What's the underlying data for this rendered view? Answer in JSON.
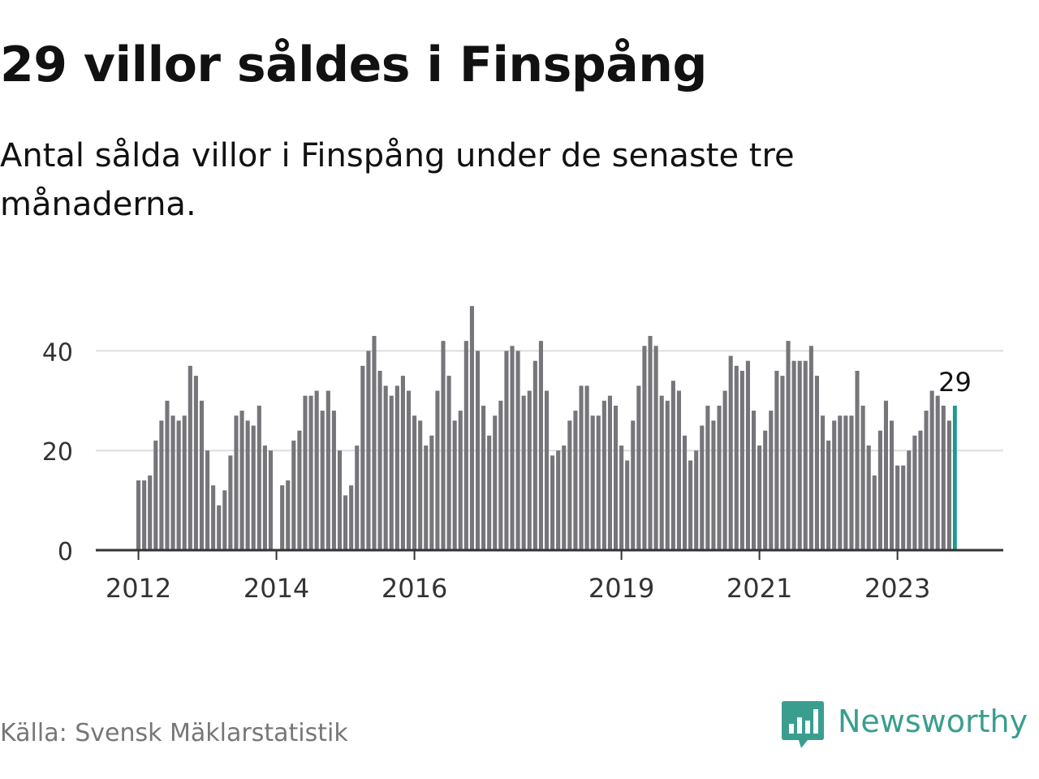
{
  "title": "29 villor såldes i Finspång",
  "subtitle": "Antal sålda villor i Finspång under de senaste tre månaderna.",
  "source": "Källa: Svensk Mäklarstatistik",
  "brand": {
    "name": "Newsworthy",
    "logo_icon": "bar-chart-speech-bubble-icon"
  },
  "colors": {
    "bar": "#76757a",
    "highlight": "#1b9a8e",
    "grid": "#dddddd",
    "axis": "#333333",
    "brand": "#3a9e8f"
  },
  "chart_data": {
    "type": "bar",
    "ylim": [
      0,
      50
    ],
    "yticks": [
      0,
      20,
      40
    ],
    "xticks": [
      "2012",
      "2014",
      "2016",
      "2019",
      "2021",
      "2023"
    ],
    "highlight_label": "29",
    "series": [
      {
        "values": [
          14,
          14,
          15,
          22,
          26,
          30,
          27,
          26,
          27,
          37,
          35,
          30,
          20,
          13,
          9,
          12,
          19,
          27,
          28,
          26,
          25,
          29,
          21,
          20,
          null,
          13,
          14,
          22,
          24,
          31,
          31,
          32,
          28,
          32,
          28,
          20,
          11,
          13,
          21,
          37,
          40,
          43,
          36,
          33,
          31,
          33,
          35,
          32,
          27,
          26,
          21,
          23,
          32,
          42,
          35,
          26,
          28,
          42,
          49,
          40,
          29,
          23,
          27,
          30,
          40,
          41,
          40,
          31,
          32,
          38,
          42,
          32,
          19,
          20,
          21,
          26,
          28,
          33,
          33,
          27,
          27,
          30,
          31,
          29,
          21,
          18,
          26,
          33,
          41,
          43,
          41,
          31,
          30,
          34,
          32,
          23,
          18,
          20,
          25,
          29,
          26,
          29,
          32,
          39,
          37,
          36,
          38,
          28,
          21,
          24,
          28,
          36,
          35,
          42,
          38,
          38,
          38,
          41,
          35,
          27,
          22,
          26,
          27,
          27,
          27,
          36,
          29,
          21,
          15,
          24,
          30,
          26,
          17,
          17,
          20,
          23,
          24,
          28,
          32,
          31,
          29,
          26,
          29
        ]
      }
    ]
  }
}
